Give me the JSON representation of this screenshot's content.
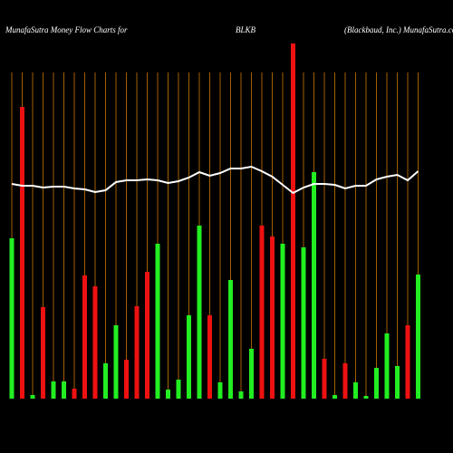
{
  "chart_data": {
    "type": "bar",
    "title_left": "MunafaSutra  Money Flow  Charts for",
    "title": "BLKB",
    "title_right": "(Blackbaud, Inc.) MunafaSutra.com",
    "ylim": [
      0,
      400
    ],
    "grid_color": "#cc7a00",
    "bars": {
      "values": [
        177,
        322,
        4,
        101,
        19,
        19,
        11,
        136,
        124,
        39,
        81,
        43,
        102,
        140,
        171,
        10,
        21,
        92,
        191,
        92,
        18,
        131,
        8,
        55,
        191,
        179,
        171,
        392,
        167,
        250,
        44,
        4,
        39,
        18,
        3,
        34,
        72,
        36,
        81,
        137
      ],
      "colors": [
        "#22ee22",
        "#ee1111",
        "#22ee22",
        "#ee1111",
        "#22ee22",
        "#22ee22",
        "#ee1111",
        "#ee1111",
        "#ee1111",
        "#22ee22",
        "#22ee22",
        "#ee1111",
        "#ee1111",
        "#ee1111",
        "#22ee22",
        "#22ee22",
        "#22ee22",
        "#22ee22",
        "#22ee22",
        "#ee1111",
        "#22ee22",
        "#22ee22",
        "#22ee22",
        "#22ee22",
        "#ee1111",
        "#ee1111",
        "#22ee22",
        "#ee1111",
        "#22ee22",
        "#22ee22",
        "#ee1111",
        "#22ee22",
        "#ee1111",
        "#22ee22",
        "#22ee22",
        "#22ee22",
        "#22ee22",
        "#22ee22",
        "#ee1111",
        "#22ee22"
      ]
    },
    "line": {
      "color": "#ffffff",
      "values": [
        237,
        235,
        235,
        233,
        234,
        234,
        232,
        231,
        228,
        230,
        239,
        241,
        241,
        242,
        241,
        238,
        240,
        244,
        250,
        246,
        249,
        254,
        254,
        256,
        251,
        245,
        236,
        227,
        233,
        237,
        237,
        236,
        232,
        235,
        235,
        242,
        245,
        247,
        241,
        251
      ]
    }
  }
}
